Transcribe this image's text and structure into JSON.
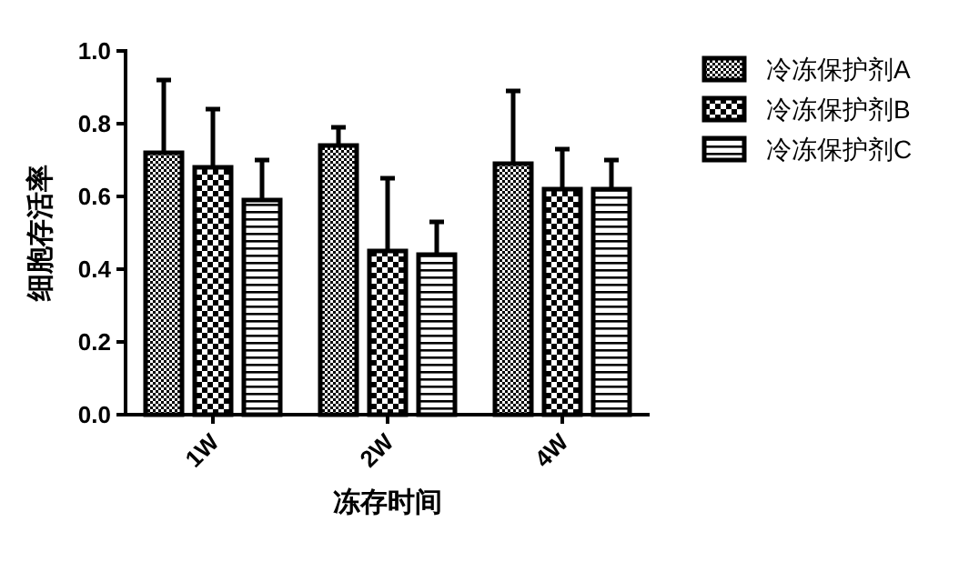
{
  "chart_data": {
    "type": "bar",
    "xlabel": "冻存时间",
    "ylabel": "细胞存活率",
    "categories": [
      "1W",
      "2W",
      "4W"
    ],
    "series": [
      {
        "name": "冷冻保护剂A",
        "color": "#000000",
        "values": [
          0.72,
          0.74,
          0.69
        ],
        "errors": [
          [
            0.72,
            0.92
          ],
          [
            0.74,
            0.79
          ],
          [
            0.69,
            0.89
          ]
        ]
      },
      {
        "name": "冷冻保护剂B",
        "color": "#000000",
        "values": [
          0.68,
          0.45,
          0.62
        ],
        "errors": [
          [
            0.68,
            0.84
          ],
          [
            0.45,
            0.65
          ],
          [
            0.62,
            0.73
          ]
        ]
      },
      {
        "name": "冷冻保护剂C",
        "color": "#000000",
        "values": [
          0.59,
          0.44,
          0.62
        ],
        "errors": [
          [
            0.59,
            0.7
          ],
          [
            0.44,
            0.53
          ],
          [
            0.62,
            0.7
          ]
        ]
      }
    ],
    "ylim": [
      0,
      1.0
    ],
    "yticks": [
      {
        "value": 0,
        "label": "0.0"
      },
      0.2,
      0.4,
      0.6,
      0.8,
      {
        "value": 1,
        "label": "1.0"
      }
    ],
    "grid": false,
    "legend": "right"
  }
}
